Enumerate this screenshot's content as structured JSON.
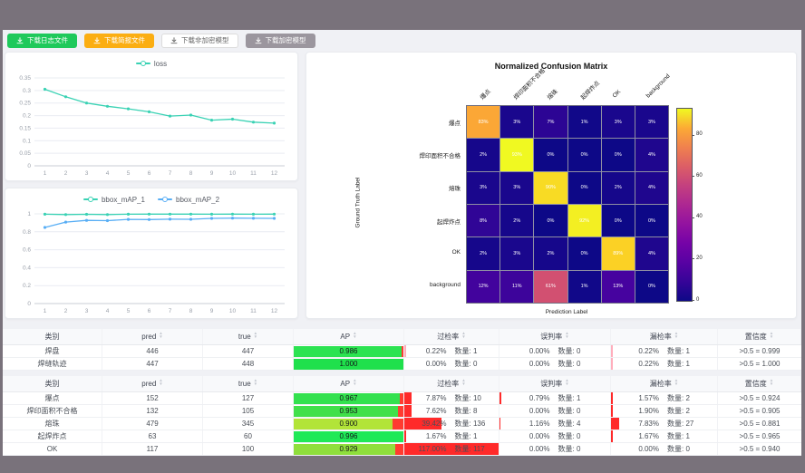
{
  "toolbar": {
    "buttons": [
      {
        "label": "下载日志文件",
        "variant": "green"
      },
      {
        "label": "下载简报文件",
        "variant": "orange"
      },
      {
        "label": "下载非加密模型",
        "variant": "white"
      },
      {
        "label": "下载加密模型",
        "variant": "gray"
      }
    ]
  },
  "chart_data": [
    {
      "id": "loss",
      "type": "line",
      "x": [
        1,
        2,
        3,
        4,
        5,
        6,
        7,
        8,
        9,
        10,
        11,
        12
      ],
      "series": [
        {
          "name": "loss",
          "color": "#3ad2b4",
          "values": [
            0.305,
            0.275,
            0.25,
            0.237,
            0.227,
            0.215,
            0.198,
            0.202,
            0.182,
            0.186,
            0.174,
            0.17
          ]
        }
      ],
      "ylim": [
        0,
        0.35
      ],
      "ytick": 0.05,
      "grid": true,
      "legend_position": "top"
    },
    {
      "id": "map",
      "type": "line",
      "x": [
        1,
        2,
        3,
        4,
        5,
        6,
        7,
        8,
        9,
        10,
        11,
        12
      ],
      "series": [
        {
          "name": "bbox_mAP_1",
          "color": "#3ad2b4",
          "values": [
            0.996,
            0.992,
            0.995,
            0.992,
            0.996,
            0.997,
            0.997,
            0.997,
            0.996,
            0.997,
            0.996,
            0.997
          ]
        },
        {
          "name": "bbox_mAP_2",
          "color": "#58aef5",
          "values": [
            0.848,
            0.908,
            0.927,
            0.924,
            0.938,
            0.936,
            0.94,
            0.939,
            0.949,
            0.953,
            0.951,
            0.95
          ]
        }
      ],
      "ylim": [
        0,
        1
      ],
      "ytick": 0.2,
      "grid": true,
      "legend_position": "top"
    },
    {
      "id": "confusion",
      "type": "heatmap",
      "title": "Normalized Confusion Matrix",
      "xlabel": "Prediction Label",
      "ylabel": "Ground Truth Label",
      "labels": [
        "爆点",
        "焊印面积不合格",
        "熔珠",
        "起焊炸点",
        "OK",
        "background"
      ],
      "values_percent": [
        [
          83,
          3,
          7,
          1,
          3,
          3
        ],
        [
          2,
          93,
          0,
          0,
          0,
          4
        ],
        [
          3,
          3,
          90,
          0,
          2,
          4
        ],
        [
          8,
          2,
          0,
          92,
          0,
          0
        ],
        [
          2,
          3,
          2,
          0,
          89,
          4
        ],
        [
          12,
          11,
          61,
          1,
          13,
          0
        ]
      ],
      "vmax": 93,
      "colorbar_ticks": [
        0,
        20,
        40,
        60,
        80
      ],
      "colormap": "plasma"
    }
  ],
  "tables": [
    {
      "headers": [
        {
          "label": "类别",
          "sortable": false
        },
        {
          "label": "pred",
          "sortable": true
        },
        {
          "label": "true",
          "sortable": true
        },
        {
          "label": "AP",
          "sortable": true
        },
        {
          "label": "过检率",
          "sortable": true
        },
        {
          "label": "误判率",
          "sortable": true
        },
        {
          "label": "漏检率",
          "sortable": true
        },
        {
          "label": "置信度",
          "sortable": true
        }
      ],
      "rows": [
        {
          "label": "焊盘",
          "pred": "446",
          "true": "447",
          "ap": {
            "value": "0.986",
            "fraction": 0.986,
            "color": "#2ce351"
          },
          "rates": [
            {
              "pct": "0.22%",
              "count": "数量: 1",
              "bar": 0.22
            },
            {
              "pct": "0.00%",
              "count": "数量: 0",
              "bar": 0
            },
            {
              "pct": "0.22%",
              "count": "数量: 1",
              "bar": 0.22
            }
          ],
          "conf": ">0.5 = 0.999"
        },
        {
          "label": "焊缝轨迹",
          "pred": "447",
          "true": "448",
          "ap": {
            "value": "1.000",
            "fraction": 1.0,
            "color": "#1fe04c"
          },
          "rates": [
            {
              "pct": "0.00%",
              "count": "数量: 0",
              "bar": 0
            },
            {
              "pct": "0.00%",
              "count": "数量: 0",
              "bar": 0
            },
            {
              "pct": "0.22%",
              "count": "数量: 1",
              "bar": 0.22
            }
          ],
          "conf": ">0.5 = 1.000"
        }
      ]
    },
    {
      "headers": [
        {
          "label": "类别",
          "sortable": false
        },
        {
          "label": "pred",
          "sortable": true
        },
        {
          "label": "true",
          "sortable": true
        },
        {
          "label": "AP",
          "sortable": true
        },
        {
          "label": "过检率",
          "sortable": true
        },
        {
          "label": "误判率",
          "sortable": true
        },
        {
          "label": "漏检率",
          "sortable": true
        },
        {
          "label": "置信度",
          "sortable": true
        }
      ],
      "rows": [
        {
          "label": "爆点",
          "pred": "152",
          "true": "127",
          "ap": {
            "value": "0.967",
            "fraction": 0.967,
            "color": "#33e14e"
          },
          "rates": [
            {
              "pct": "7.87%",
              "count": "数量: 10",
              "bar": 7.87
            },
            {
              "pct": "0.79%",
              "count": "数量: 1",
              "bar": 0.79
            },
            {
              "pct": "1.57%",
              "count": "数量: 2",
              "bar": 1.57
            }
          ],
          "conf": ">0.5 = 0.924"
        },
        {
          "label": "焊印面积不合格",
          "pred": "132",
          "true": "105",
          "ap": {
            "value": "0.953",
            "fraction": 0.953,
            "color": "#41e04a"
          },
          "rates": [
            {
              "pct": "7.62%",
              "count": "数量: 8",
              "bar": 7.62
            },
            {
              "pct": "0.00%",
              "count": "数量: 0",
              "bar": 0
            },
            {
              "pct": "1.90%",
              "count": "数量: 2",
              "bar": 1.9
            }
          ],
          "conf": ">0.5 = 0.905"
        },
        {
          "label": "熔珠",
          "pred": "479",
          "true": "345",
          "ap": {
            "value": "0.900",
            "fraction": 0.9,
            "color": "#b2e438"
          },
          "rates": [
            {
              "pct": "39.42%",
              "count": "数量: 136",
              "bar": 39.42
            },
            {
              "pct": "1.16%",
              "count": "数量: 4",
              "bar": 1.16
            },
            {
              "pct": "7.83%",
              "count": "数量: 27",
              "bar": 7.83
            }
          ],
          "conf": ">0.5 = 0.881"
        },
        {
          "label": "起焊炸点",
          "pred": "63",
          "true": "60",
          "ap": {
            "value": "0.996",
            "fraction": 0.996,
            "color": "#1fe957"
          },
          "rates": [
            {
              "pct": "1.67%",
              "count": "数量: 1",
              "bar": 1.67
            },
            {
              "pct": "0.00%",
              "count": "数量: 0",
              "bar": 0
            },
            {
              "pct": "1.67%",
              "count": "数量: 1",
              "bar": 1.67
            }
          ],
          "conf": ">0.5 = 0.965"
        },
        {
          "label": "OK",
          "pred": "117",
          "true": "100",
          "ap": {
            "value": "0.929",
            "fraction": 0.929,
            "color": "#8fdf3c"
          },
          "rates": [
            {
              "pct": "117.00%",
              "count": "数量: 117",
              "bar": 117
            },
            {
              "pct": "0.00%",
              "count": "数量: 0",
              "bar": 0
            },
            {
              "pct": "0.00%",
              "count": "数量: 0",
              "bar": 0
            }
          ],
          "conf": ">0.5 = 0.940"
        }
      ]
    }
  ],
  "colors": {
    "bar_red": "#ff2a2a",
    "bar_pink": "#ffaebc",
    "ap_remainder_red": "#ff3b30",
    "teal": "#3ad2b4",
    "blue": "#58aef5",
    "chrome_gray": "#79727b",
    "page_bg": "#f0f1f5"
  }
}
